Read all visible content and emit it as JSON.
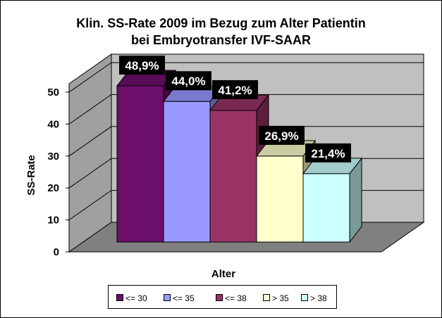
{
  "chart_data": {
    "type": "bar",
    "title": "Klin. SS-Rate 2009 im Bezug zum Alter Patientin",
    "subtitle": "bei Embryotransfer IVF-SAAR",
    "xlabel": "Alter",
    "ylabel": "SS-Rate",
    "ylim": [
      0,
      50
    ],
    "yticks": [
      "0",
      "10",
      "20",
      "30",
      "40",
      "50"
    ],
    "legend_position": "bottom",
    "grid": true,
    "series": [
      {
        "name": "<= 30",
        "value": 48.9,
        "label": "48,9%",
        "color": "#6b0f6b"
      },
      {
        "name": "<= 35",
        "value": 44.0,
        "label": "44,0%",
        "color": "#9999ff"
      },
      {
        "name": "<= 38",
        "value": 41.2,
        "label": "41,2%",
        "color": "#993366"
      },
      {
        "name": "> 35",
        "value": 26.9,
        "label": "26,9%",
        "color": "#ffffcc"
      },
      {
        "name": "> 38",
        "value": 21.4,
        "label": "21,4%",
        "color": "#ccffff"
      }
    ]
  }
}
